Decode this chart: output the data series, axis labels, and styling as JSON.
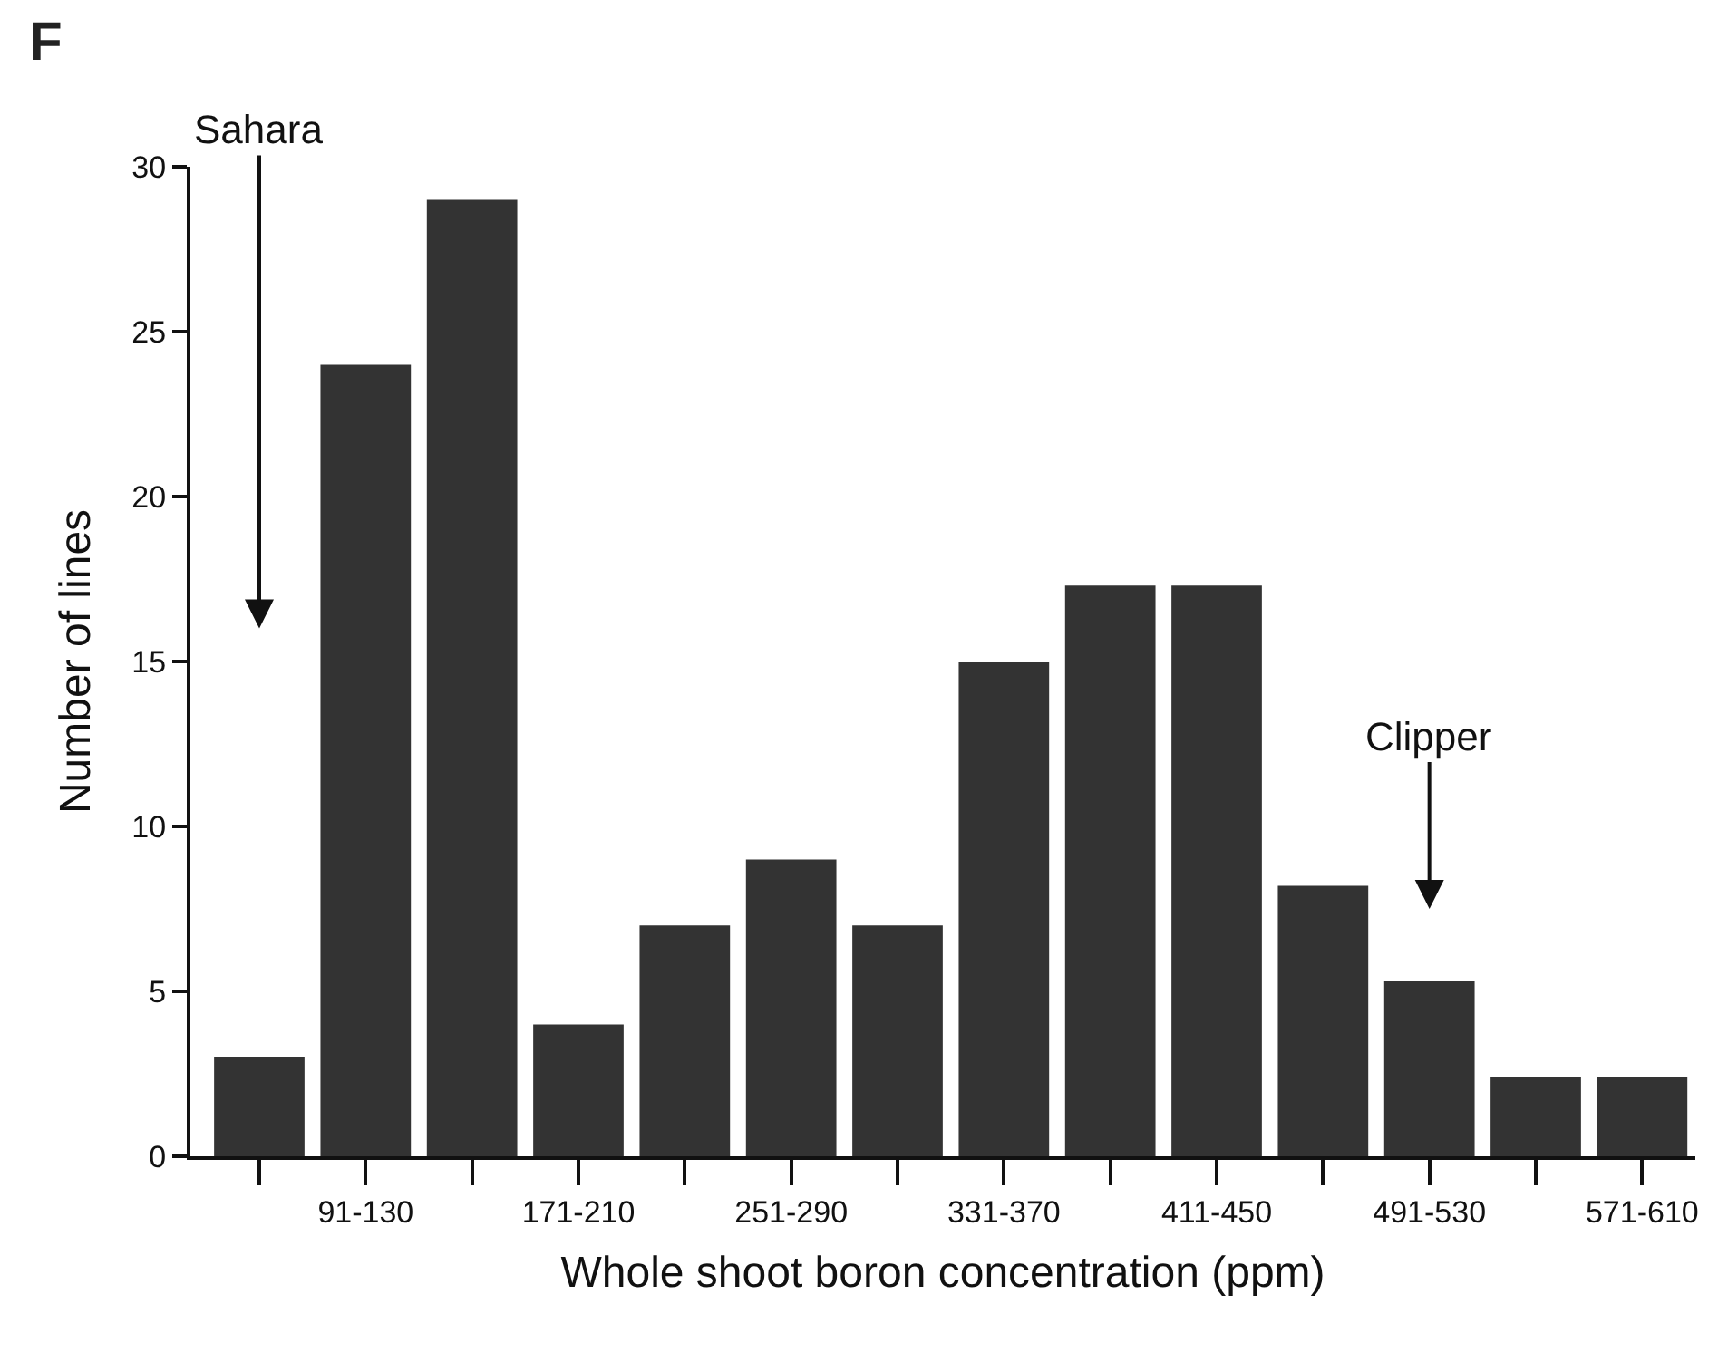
{
  "chart_data": {
    "type": "bar",
    "categories": [
      null,
      "91-130",
      null,
      "171-210",
      null,
      "251-290",
      null,
      "331-370",
      null,
      "411-450",
      null,
      "491-530",
      null,
      "571-610"
    ],
    "values": [
      3,
      24,
      29,
      4,
      7,
      9,
      7,
      15,
      17.3,
      17.3,
      8.2,
      5.3,
      2.4,
      2.4
    ],
    "color": "#333333",
    "xlabel": "Whole shoot boron concentration (ppm)",
    "ylabel": "Number of lines",
    "ylim": [
      0,
      30
    ],
    "yticks": [
      0,
      5,
      10,
      15,
      20,
      25,
      30
    ],
    "annotations": [
      "F",
      "Sahara",
      "Clipper"
    ]
  }
}
